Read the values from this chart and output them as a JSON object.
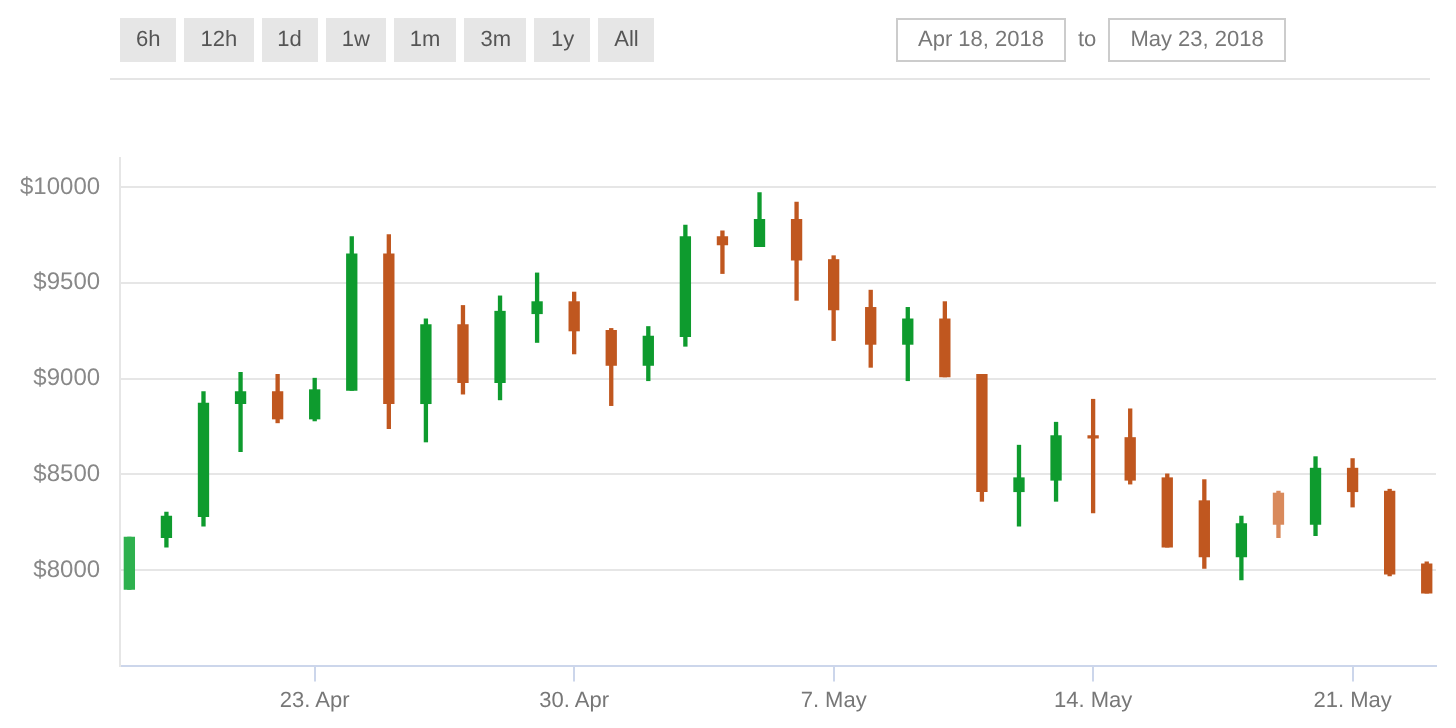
{
  "chart_data": {
    "type": "candlestick",
    "x": [
      "2018-04-18",
      "2018-04-19",
      "2018-04-20",
      "2018-04-21",
      "2018-04-22",
      "2018-04-23",
      "2018-04-24",
      "2018-04-25",
      "2018-04-26",
      "2018-04-27",
      "2018-04-28",
      "2018-04-29",
      "2018-04-30",
      "2018-05-01",
      "2018-05-02",
      "2018-05-03",
      "2018-05-04",
      "2018-05-05",
      "2018-05-06",
      "2018-05-07",
      "2018-05-08",
      "2018-05-09",
      "2018-05-10",
      "2018-05-11",
      "2018-05-12",
      "2018-05-13",
      "2018-05-14",
      "2018-05-15",
      "2018-05-16",
      "2018-05-17",
      "2018-05-18",
      "2018-05-19",
      "2018-05-20",
      "2018-05-21",
      "2018-05-22",
      "2018-05-23"
    ],
    "ohlc": [
      [
        7900,
        8170,
        7900,
        8170
      ],
      [
        8170,
        8300,
        8120,
        8280
      ],
      [
        8280,
        8930,
        8230,
        8870
      ],
      [
        8870,
        9030,
        8620,
        8930
      ],
      [
        8930,
        9020,
        8770,
        8790
      ],
      [
        8790,
        9000,
        8780,
        8940
      ],
      [
        8940,
        9740,
        8940,
        9650
      ],
      [
        9650,
        9750,
        8740,
        8870
      ],
      [
        8870,
        9310,
        8670,
        9280
      ],
      [
        9280,
        9380,
        8920,
        8980
      ],
      [
        8980,
        9430,
        8890,
        9350
      ],
      [
        9340,
        9550,
        9190,
        9400
      ],
      [
        9400,
        9450,
        9130,
        9250
      ],
      [
        9250,
        9260,
        8860,
        9070
      ],
      [
        9070,
        9270,
        8990,
        9220
      ],
      [
        9220,
        9800,
        9170,
        9740
      ],
      [
        9740,
        9770,
        9550,
        9700
      ],
      [
        9690,
        9970,
        9690,
        9830
      ],
      [
        9830,
        9920,
        9410,
        9620
      ],
      [
        9620,
        9640,
        9200,
        9360
      ],
      [
        9370,
        9460,
        9060,
        9180
      ],
      [
        9180,
        9370,
        8990,
        9310
      ],
      [
        9310,
        9400,
        9010,
        9010
      ],
      [
        9020,
        9020,
        8360,
        8410
      ],
      [
        8410,
        8650,
        8230,
        8480
      ],
      [
        8470,
        8770,
        8360,
        8700
      ],
      [
        8700,
        8890,
        8300,
        8690
      ],
      [
        8690,
        8840,
        8450,
        8470
      ],
      [
        8480,
        8500,
        8120,
        8120
      ],
      [
        8360,
        8470,
        8010,
        8070
      ],
      [
        8070,
        8280,
        7950,
        8240
      ],
      [
        8400,
        8410,
        8170,
        8240
      ],
      [
        8240,
        8590,
        8180,
        8530
      ],
      [
        8530,
        8580,
        8330,
        8410
      ],
      [
        8410,
        8420,
        7970,
        7980
      ],
      [
        8030,
        8040,
        7880,
        7880
      ]
    ],
    "colors": [
      "#2eb14e",
      "#0e9b2e",
      "#0e9b2e",
      "#0e9b2e",
      "#c0571f",
      "#0e9b2e",
      "#0e9b2e",
      "#c0571f",
      "#0e9b2e",
      "#c0571f",
      "#0e9b2e",
      "#0e9b2e",
      "#c0571f",
      "#c0571f",
      "#0e9b2e",
      "#0e9b2e",
      "#c0571f",
      "#0e9b2e",
      "#c0571f",
      "#c0571f",
      "#c0571f",
      "#0e9b2e",
      "#c0571f",
      "#c0571f",
      "#0e9b2e",
      "#0e9b2e",
      "#c0571f",
      "#c0571f",
      "#c0571f",
      "#c0571f",
      "#0e9b2e",
      "#d98a5c",
      "#0e9b2e",
      "#c0571f",
      "#c0571f",
      "#c0571f"
    ],
    "ylim": [
      7500,
      10150
    ],
    "yticks": [
      {
        "value": 8000,
        "label": "$8000"
      },
      {
        "value": 8500,
        "label": "$8500"
      },
      {
        "value": 9000,
        "label": "$9000"
      },
      {
        "value": 9500,
        "label": "$9500"
      },
      {
        "value": 10000,
        "label": "$10000"
      }
    ],
    "xlim": [
      "2018-04-17T18:00",
      "2018-05-23T06:00"
    ],
    "xticks": [
      {
        "value": "2018-04-23",
        "label": "23. Apr"
      },
      {
        "value": "2018-04-30",
        "label": "30. Apr"
      },
      {
        "value": "2018-05-07",
        "label": "7. May"
      },
      {
        "value": "2018-05-14",
        "label": "14. May"
      },
      {
        "value": "2018-05-21",
        "label": "21. May"
      }
    ],
    "grid": "y",
    "annotations": [
      "6h",
      "12h",
      "1d",
      "1w",
      "1m",
      "3m",
      "1y",
      "All",
      "Apr 18, 2018",
      "to",
      "May 23, 2018"
    ]
  }
}
